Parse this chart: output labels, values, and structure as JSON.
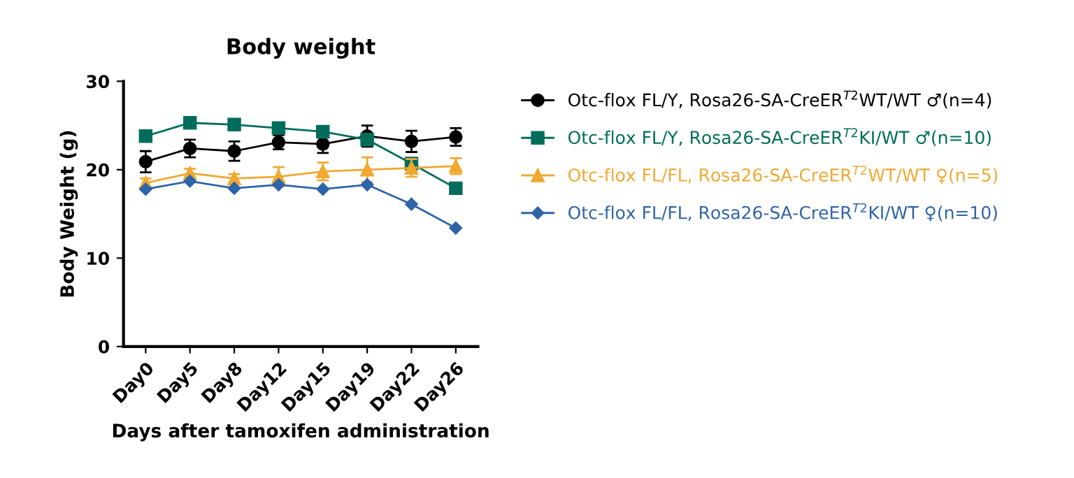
{
  "chart_data": {
    "type": "line",
    "title": "Body weight",
    "xlabel": "Days after tamoxifen administration",
    "ylabel": "Body Weight (g)",
    "categories": [
      "Day0",
      "Day5",
      "Day8",
      "Day12",
      "Day15",
      "Day19",
      "Day22",
      "Day26"
    ],
    "ylim": [
      0,
      30
    ],
    "yticks": [
      0,
      10,
      20,
      30
    ],
    "grid": false,
    "legend": "right",
    "series": [
      {
        "name": "Otc-flox FL/Y, Rosa26-SA-CreER$^{T2}$WT/WT ♂(n=4)",
        "color": "#000000",
        "marker": "circle",
        "values": [
          20.9,
          22.4,
          22.1,
          23.1,
          22.9,
          23.8,
          23.2,
          23.7
        ],
        "errors": [
          1.2,
          1.0,
          1.1,
          0.8,
          1.0,
          1.2,
          1.2,
          1.0
        ]
      },
      {
        "name": "Otc-flox FL/Y, Rosa26-SA-CreER$^{T2}$KI/WT ♂(n=10)",
        "color": "#006d5b",
        "marker": "square",
        "values": [
          23.8,
          25.3,
          25.1,
          24.7,
          24.3,
          23.4,
          20.7,
          17.9
        ]
      },
      {
        "name": "Otc-flox FL/FL, Rosa26-SA-CreER$^{T2}$WT/WT ♀(n=5)",
        "color": "#f0a830",
        "marker": "triangle",
        "values": [
          18.5,
          19.6,
          19.0,
          19.2,
          19.8,
          20.0,
          20.2,
          20.4
        ],
        "errors": [
          0.5,
          0.5,
          0.5,
          1.1,
          1.0,
          1.4,
          1.0,
          0.9
        ]
      },
      {
        "name": "Otc-flox FL/FL, Rosa26-SA-CreER$^{T2}$KI/WT ♀(n=10)",
        "color": "#2e64a8",
        "marker": "diamond",
        "values": [
          17.8,
          18.7,
          17.9,
          18.3,
          17.8,
          18.3,
          16.1,
          13.4
        ]
      }
    ]
  }
}
